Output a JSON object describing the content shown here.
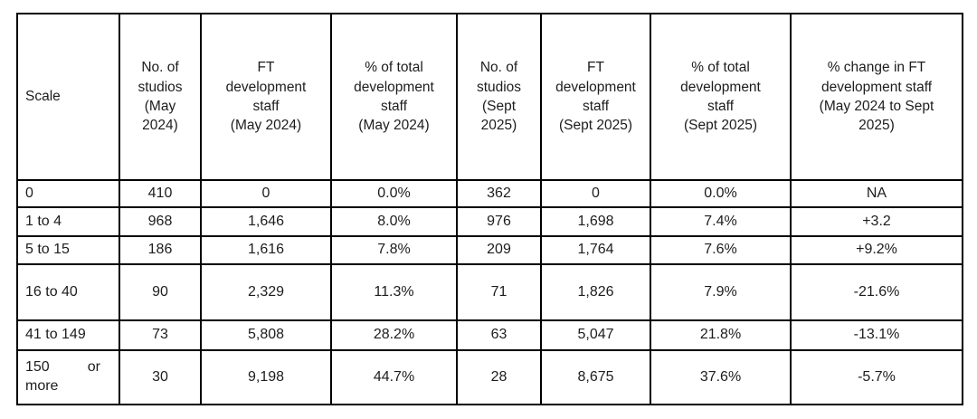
{
  "colors": {
    "background": "#ffffff",
    "border": "#000000",
    "text": "#1d1d1d"
  },
  "table": {
    "columns": [
      {
        "id": "scale",
        "label": "Scale"
      },
      {
        "id": "studios-may-2024",
        "label": "No. of\nstudios\n(May\n2024)"
      },
      {
        "id": "ft-staff-may-2024",
        "label": "FT\ndevelopment\nstaff\n(May 2024)"
      },
      {
        "id": "pct-total-staff-may-2024",
        "label": "% of total\ndevelopment\nstaff\n(May 2024)"
      },
      {
        "id": "studios-sept-2025",
        "label": "No. of\nstudios\n(Sept\n2025)"
      },
      {
        "id": "ft-staff-sept-2025",
        "label": "FT\ndevelopment\nstaff\n(Sept 2025)"
      },
      {
        "id": "pct-total-staff-sept-2025",
        "label": "% of total\ndevelopment\nstaff\n(Sept 2025)"
      },
      {
        "id": "pct-change-ft-staff",
        "label": "% change in FT\ndevelopment staff\n(May 2024 to Sept\n2025)"
      }
    ],
    "rows": [
      {
        "cells": [
          "0",
          "410",
          "0",
          "0.0%",
          "362",
          "0",
          "0.0%",
          "NA"
        ]
      },
      {
        "cells": [
          "1 to 4",
          "968",
          "1,646",
          "8.0%",
          "976",
          "1,698",
          "7.4%",
          "+3.2"
        ]
      },
      {
        "cells": [
          "5 to 15",
          "186",
          "1,616",
          "7.8%",
          "209",
          "1,764",
          "7.6%",
          "+9.2%"
        ]
      },
      {
        "cells": [
          "16 to 40",
          "90",
          "2,329",
          "11.3%",
          "71",
          "1,826",
          "7.9%",
          "-21.6%"
        ]
      },
      {
        "cells": [
          "41 to 149",
          "73",
          "5,808",
          "28.2%",
          "63",
          "5,047",
          "21.8%",
          "-13.1%"
        ]
      },
      {
        "cells": [
          "150 or more",
          "30",
          "9,198",
          "44.7%",
          "28",
          "8,675",
          "37.6%",
          "-5.7%"
        ]
      }
    ]
  }
}
